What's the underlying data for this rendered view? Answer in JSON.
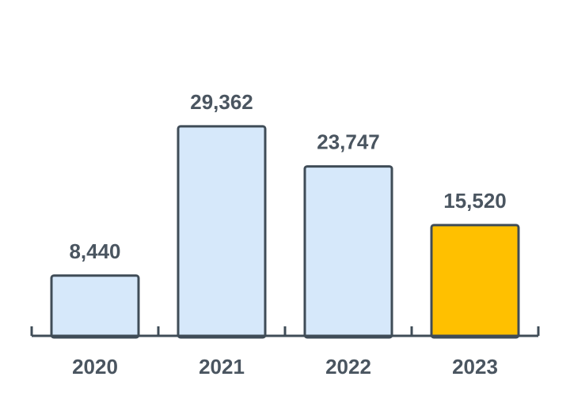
{
  "chart_data": {
    "type": "bar",
    "title": "",
    "xlabel": "",
    "ylabel": "",
    "categories": [
      "2020",
      "2021",
      "2022",
      "2023"
    ],
    "values": [
      8440,
      29362,
      23747,
      15520
    ],
    "value_labels": [
      "8,440",
      "29,362",
      "23,747",
      "15,520"
    ],
    "ylim": [
      0,
      36000
    ],
    "grid": false,
    "legend": "none",
    "highlight_index": 3,
    "colors": {
      "bar": "#d6e8fa",
      "bar_highlight": "#ffc000",
      "bar_stroke": "#3f4c57",
      "axis": "#3f4c57",
      "text": "#4a5560"
    }
  }
}
